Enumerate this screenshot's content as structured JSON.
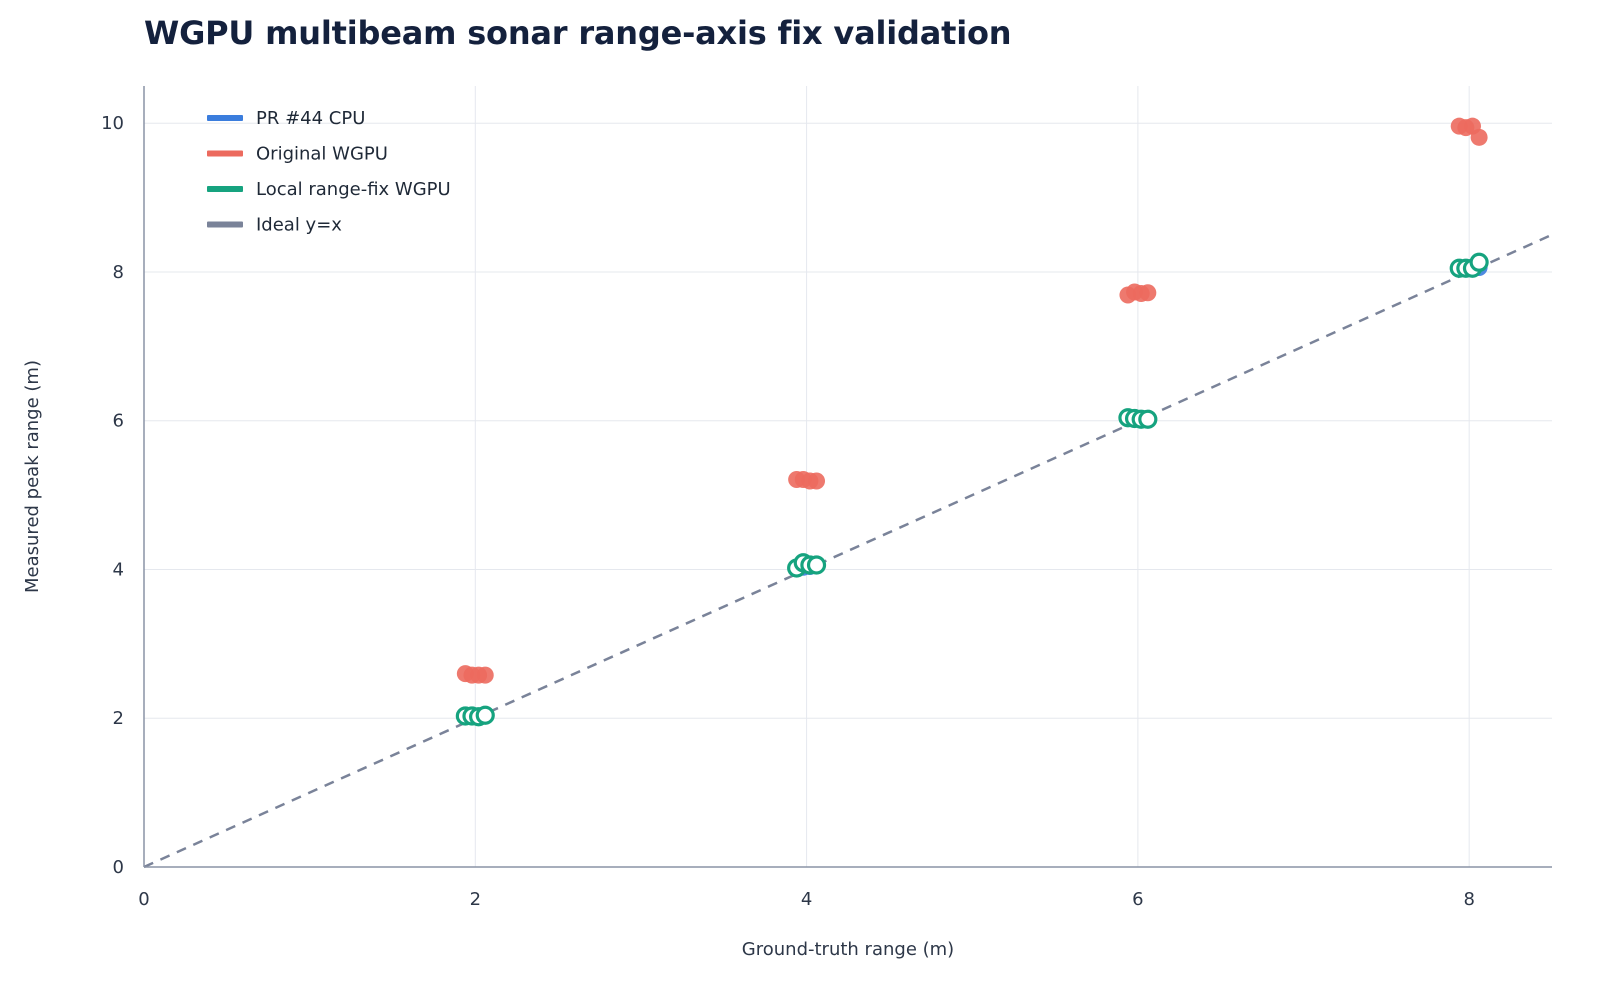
{
  "chart_data": {
    "type": "scatter",
    "title": "WGPU multibeam sonar range-axis fix validation",
    "xlabel": "Ground-truth range (m)",
    "ylabel": "Measured peak range (m)",
    "xlim": [
      0,
      8.5
    ],
    "ylim": [
      0,
      10.5
    ],
    "x_ticks": [
      "0",
      "2",
      "4",
      "6",
      "8"
    ],
    "y_ticks": [
      "0",
      "2",
      "4",
      "6",
      "8",
      "10"
    ],
    "grid": true,
    "legend_position": "top-left",
    "series": [
      {
        "name": "PR #44 CPU",
        "color": "#3b7ddd",
        "marker": "filled-circle",
        "points": [
          {
            "x": 1.94,
            "y": 2.02
          },
          {
            "x": 1.98,
            "y": 2.02
          },
          {
            "x": 2.02,
            "y": 2.02
          },
          {
            "x": 2.06,
            "y": 2.03
          },
          {
            "x": 3.94,
            "y": 4.01
          },
          {
            "x": 3.98,
            "y": 4.03
          },
          {
            "x": 4.02,
            "y": 4.04
          },
          {
            "x": 4.06,
            "y": 4.05
          },
          {
            "x": 5.94,
            "y": 6.03
          },
          {
            "x": 5.98,
            "y": 6.02
          },
          {
            "x": 6.02,
            "y": 6.01
          },
          {
            "x": 6.06,
            "y": 6.01
          },
          {
            "x": 7.94,
            "y": 8.04
          },
          {
            "x": 7.98,
            "y": 8.04
          },
          {
            "x": 8.02,
            "y": 8.04
          },
          {
            "x": 8.06,
            "y": 8.06
          }
        ]
      },
      {
        "name": "Original WGPU",
        "color": "#ec6a5e",
        "marker": "filled-circle",
        "points": [
          {
            "x": 1.94,
            "y": 2.6
          },
          {
            "x": 1.98,
            "y": 2.58
          },
          {
            "x": 2.02,
            "y": 2.58
          },
          {
            "x": 2.06,
            "y": 2.58
          },
          {
            "x": 3.94,
            "y": 5.21
          },
          {
            "x": 3.98,
            "y": 5.21
          },
          {
            "x": 4.02,
            "y": 5.19
          },
          {
            "x": 4.06,
            "y": 5.19
          },
          {
            "x": 5.94,
            "y": 7.69
          },
          {
            "x": 5.98,
            "y": 7.73
          },
          {
            "x": 6.02,
            "y": 7.71
          },
          {
            "x": 6.06,
            "y": 7.72
          },
          {
            "x": 7.94,
            "y": 9.96
          },
          {
            "x": 7.98,
            "y": 9.94
          },
          {
            "x": 8.02,
            "y": 9.96
          },
          {
            "x": 8.06,
            "y": 9.81
          }
        ]
      },
      {
        "name": "Local range-fix WGPU",
        "color": "#16a37f",
        "marker": "open-circle",
        "points": [
          {
            "x": 1.94,
            "y": 2.03
          },
          {
            "x": 1.98,
            "y": 2.03
          },
          {
            "x": 2.02,
            "y": 2.02
          },
          {
            "x": 2.06,
            "y": 2.04
          },
          {
            "x": 3.94,
            "y": 4.02
          },
          {
            "x": 3.98,
            "y": 4.09
          },
          {
            "x": 4.02,
            "y": 4.06
          },
          {
            "x": 4.06,
            "y": 4.06
          },
          {
            "x": 5.94,
            "y": 6.04
          },
          {
            "x": 5.98,
            "y": 6.03
          },
          {
            "x": 6.02,
            "y": 6.02
          },
          {
            "x": 6.06,
            "y": 6.02
          },
          {
            "x": 7.94,
            "y": 8.05
          },
          {
            "x": 7.98,
            "y": 8.05
          },
          {
            "x": 8.02,
            "y": 8.05
          },
          {
            "x": 8.06,
            "y": 8.13
          }
        ]
      },
      {
        "name": "Ideal y=x",
        "color": "#7a8399",
        "marker": "dashed-line",
        "points": [
          {
            "x": 0,
            "y": 0
          },
          {
            "x": 8.5,
            "y": 8.5
          }
        ]
      }
    ]
  }
}
